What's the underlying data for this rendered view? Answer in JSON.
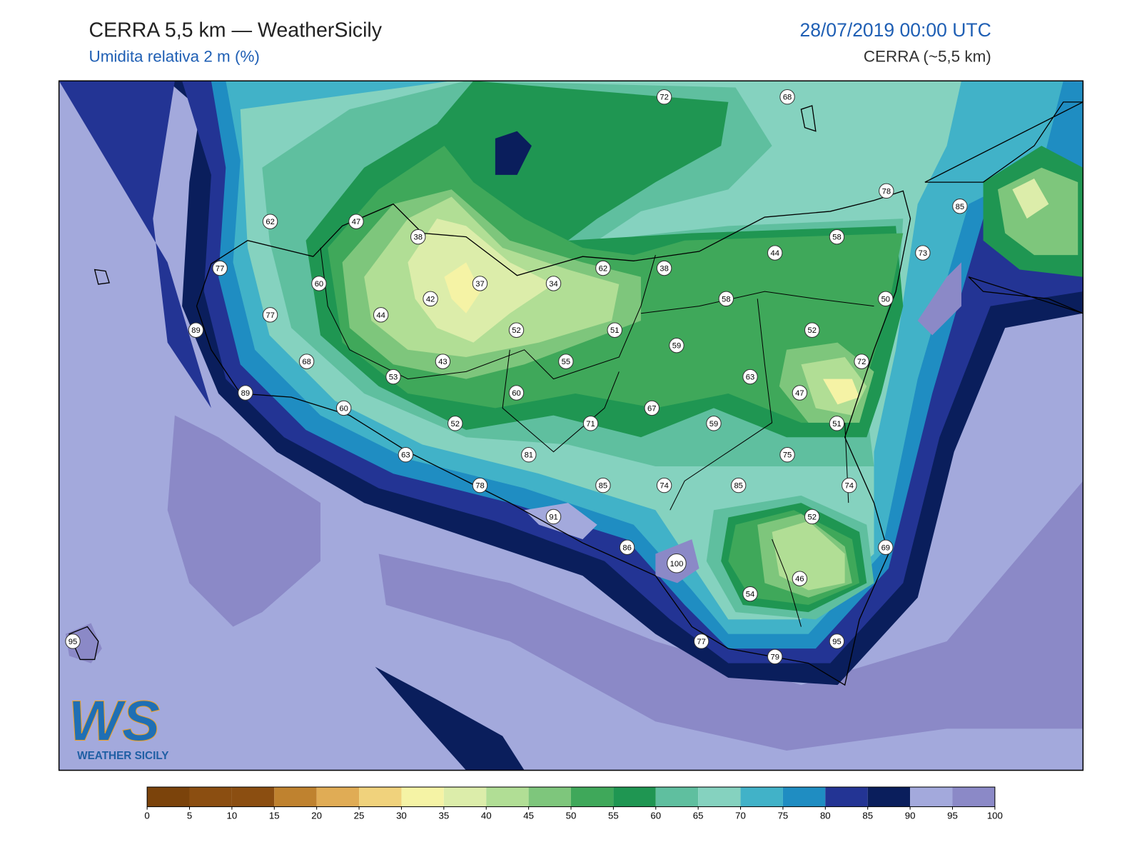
{
  "header": {
    "title": "CERRA 5,5 km — WeatherSicily",
    "subtitle": "Umidita relativa 2 m (%)",
    "datetime": "28/07/2019 00:00 UTC",
    "model": "CERRA (~5,5 km)"
  },
  "logo": {
    "mark": "WS",
    "name": "WEATHER SICILY"
  },
  "stations": [
    72,
    68,
    62,
    47,
    38,
    78,
    85,
    77,
    60,
    37,
    34,
    62,
    38,
    44,
    58,
    73,
    42,
    77,
    44,
    52,
    51,
    58,
    50,
    89,
    59,
    52,
    68,
    43,
    55,
    72,
    53,
    63,
    89,
    60,
    47,
    60,
    67,
    52,
    71,
    59,
    51,
    63,
    81,
    75,
    78,
    85,
    74,
    85,
    74,
    91,
    52,
    86,
    69,
    100,
    46,
    54,
    95,
    77,
    95,
    79
  ],
  "colorbar": {
    "ticks": [
      0,
      5,
      10,
      15,
      20,
      25,
      30,
      35,
      40,
      45,
      50,
      55,
      60,
      65,
      70,
      75,
      80,
      85,
      90,
      95,
      100
    ],
    "colors": [
      "#7b430b",
      "#8b4e11",
      "#8b4e11",
      "#bf822f",
      "#e0ac55",
      "#f0d27c",
      "#f5f3a5",
      "#dcedaa",
      "#b1de95",
      "#7ec67c",
      "#3fa85a",
      "#1f9652",
      "#5fbf9f",
      "#85d2bf",
      "#41b2c8",
      "#1f8dc2",
      "#233494",
      "#0a1e5c",
      "#a3a9dc",
      "#8b89c7"
    ]
  }
}
